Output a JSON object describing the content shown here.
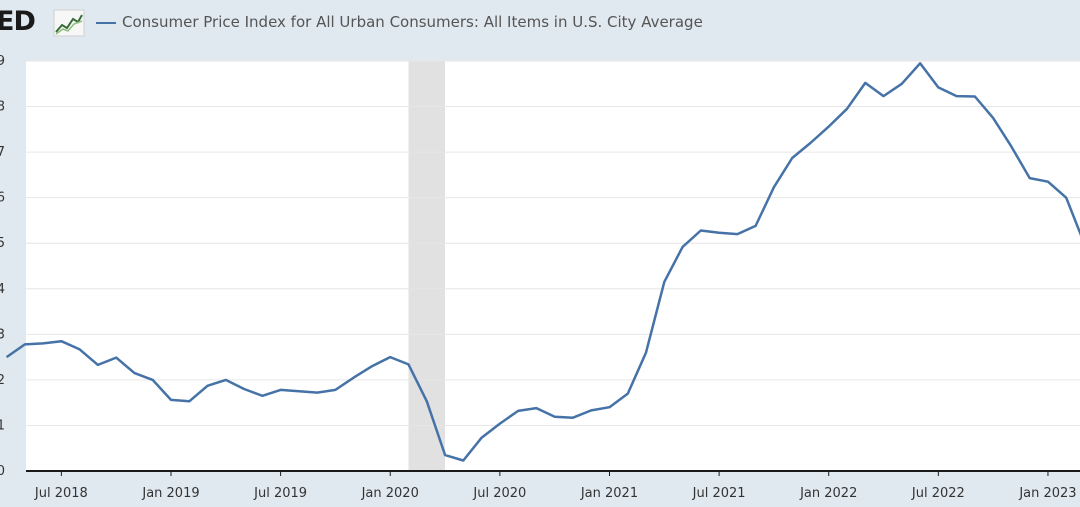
{
  "logo": {
    "text": "ED",
    "icon": "fred-line-chart-icon"
  },
  "legend": {
    "label": "Consumer Price Index for All Urban Consumers: All Items in U.S. City Average",
    "color": "#4572a7"
  },
  "colors": {
    "background": "#e1e9f0",
    "plot": "#ffffff",
    "grid": "#e6e6e6",
    "recession": "#e1e1e1",
    "line": "#4572a7"
  },
  "chart_data": {
    "type": "line",
    "title": "",
    "xlabel": "",
    "ylabel": "",
    "ylim": [
      0,
      9
    ],
    "y_ticks": [
      {
        "value": 0,
        "label": "0"
      },
      {
        "value": 1,
        "label": "1"
      },
      {
        "value": 2,
        "label": "2"
      },
      {
        "value": 3,
        "label": "3"
      },
      {
        "value": 4,
        "label": "4"
      },
      {
        "value": 5,
        "label": "5"
      },
      {
        "value": 6,
        "label": "6"
      },
      {
        "value": 7,
        "label": "7"
      },
      {
        "value": 8,
        "label": "8"
      },
      {
        "value": 9,
        "label": "9"
      }
    ],
    "x_ticks": [
      {
        "date": "2018-07",
        "label": "Jul 2018"
      },
      {
        "date": "2019-01",
        "label": "Jan 2019"
      },
      {
        "date": "2019-07",
        "label": "Jul 2019"
      },
      {
        "date": "2020-01",
        "label": "Jan 2020"
      },
      {
        "date": "2020-07",
        "label": "Jul 2020"
      },
      {
        "date": "2021-01",
        "label": "Jan 2021"
      },
      {
        "date": "2021-07",
        "label": "Jul 2021"
      },
      {
        "date": "2022-01",
        "label": "Jan 2022"
      },
      {
        "date": "2022-07",
        "label": "Jul 2022"
      },
      {
        "date": "2023-01",
        "label": "Jan 2023"
      }
    ],
    "recession": {
      "start": "2020-02",
      "end": "2020-04"
    },
    "grid": true,
    "series": [
      {
        "name": "Consumer Price Index for All Urban Consumers: All Items in U.S. City Average",
        "x": [
          "2018-04",
          "2018-05",
          "2018-06",
          "2018-07",
          "2018-08",
          "2018-09",
          "2018-10",
          "2018-11",
          "2018-12",
          "2019-01",
          "2019-02",
          "2019-03",
          "2019-04",
          "2019-05",
          "2019-06",
          "2019-07",
          "2019-08",
          "2019-09",
          "2019-10",
          "2019-11",
          "2019-12",
          "2020-01",
          "2020-02",
          "2020-03",
          "2020-04",
          "2020-05",
          "2020-06",
          "2020-07",
          "2020-08",
          "2020-09",
          "2020-10",
          "2020-11",
          "2020-12",
          "2021-01",
          "2021-02",
          "2021-03",
          "2021-04",
          "2021-05",
          "2021-06",
          "2021-07",
          "2021-08",
          "2021-09",
          "2021-10",
          "2021-11",
          "2021-12",
          "2022-01",
          "2022-02",
          "2022-03",
          "2022-04",
          "2022-05",
          "2022-06",
          "2022-07",
          "2022-08",
          "2022-09",
          "2022-10",
          "2022-11",
          "2022-12",
          "2023-01",
          "2023-02",
          "2023-03"
        ],
        "values": [
          2.5,
          2.78,
          2.8,
          2.85,
          2.67,
          2.33,
          2.49,
          2.15,
          2.0,
          1.56,
          1.53,
          1.87,
          2.0,
          1.8,
          1.65,
          1.78,
          1.75,
          1.72,
          1.78,
          2.05,
          2.3,
          2.5,
          2.34,
          1.53,
          0.35,
          0.23,
          0.73,
          1.04,
          1.32,
          1.38,
          1.19,
          1.17,
          1.33,
          1.4,
          1.7,
          2.6,
          4.15,
          4.92,
          5.28,
          5.23,
          5.2,
          5.38,
          6.23,
          6.87,
          7.2,
          7.56,
          7.95,
          8.52,
          8.23,
          8.5,
          8.95,
          8.42,
          8.23,
          8.22,
          7.75,
          7.12,
          6.43,
          6.35,
          6.0,
          4.98
        ]
      }
    ]
  }
}
